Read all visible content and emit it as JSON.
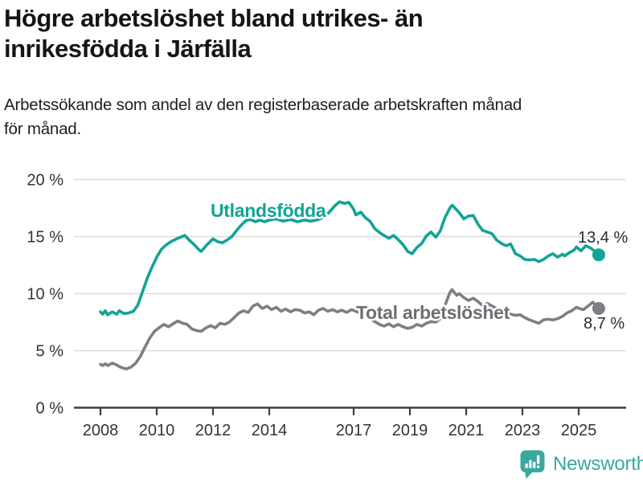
{
  "header": {
    "title_line1": "Högre arbetslöshet bland utrikes- än",
    "title_line2": "inrikesfödda i Järfälla",
    "subtitle_line1": "Arbetssökande som andel av den registerbaserade arbetskraften månad",
    "subtitle_line2": "för månad."
  },
  "chart_data": {
    "type": "line",
    "x_unit": "year (monthly data)",
    "y_unit": "%",
    "ylim": [
      0,
      20
    ],
    "xlim": [
      2006.94,
      2026.69
    ],
    "grid": "horizontal",
    "x_ticks": [
      2008,
      2010,
      2012,
      2014,
      2017,
      2019,
      2021,
      2023,
      2025
    ],
    "x_tick_labels": [
      "2008",
      "2010",
      "2012",
      "2014",
      "2017",
      "2019",
      "2021",
      "2023",
      "2025"
    ],
    "y_ticks": [
      0,
      5,
      10,
      15,
      20
    ],
    "y_tick_labels": [
      "0 %",
      "5 %",
      "10 %",
      "15 %",
      "20 %"
    ],
    "series": [
      {
        "name": "Utlandsfödda",
        "color": "#12a396",
        "end_value": 13.4,
        "end_label": "13,4 %",
        "points": [
          [
            2008.0,
            8.4
          ],
          [
            2008.08,
            8.2
          ],
          [
            2008.17,
            8.5
          ],
          [
            2008.25,
            8.15
          ],
          [
            2008.42,
            8.4
          ],
          [
            2008.58,
            8.2
          ],
          [
            2008.67,
            8.5
          ],
          [
            2008.83,
            8.25
          ],
          [
            2009.0,
            8.3
          ],
          [
            2009.17,
            8.45
          ],
          [
            2009.33,
            9.0
          ],
          [
            2009.5,
            10.2
          ],
          [
            2009.67,
            11.4
          ],
          [
            2009.83,
            12.3
          ],
          [
            2010.0,
            13.2
          ],
          [
            2010.17,
            13.9
          ],
          [
            2010.33,
            14.25
          ],
          [
            2010.5,
            14.55
          ],
          [
            2010.75,
            14.85
          ],
          [
            2011.0,
            15.1
          ],
          [
            2011.17,
            14.65
          ],
          [
            2011.33,
            14.3
          ],
          [
            2011.5,
            13.85
          ],
          [
            2011.58,
            13.7
          ],
          [
            2011.75,
            14.2
          ],
          [
            2012.0,
            14.8
          ],
          [
            2012.17,
            14.55
          ],
          [
            2012.33,
            14.45
          ],
          [
            2012.5,
            14.7
          ],
          [
            2012.67,
            15.0
          ],
          [
            2012.83,
            15.5
          ],
          [
            2013.0,
            16.0
          ],
          [
            2013.17,
            16.4
          ],
          [
            2013.33,
            16.5
          ],
          [
            2013.5,
            16.3
          ],
          [
            2013.67,
            16.45
          ],
          [
            2013.83,
            16.3
          ],
          [
            2014.0,
            16.45
          ],
          [
            2014.25,
            16.55
          ],
          [
            2014.5,
            16.35
          ],
          [
            2014.75,
            16.5
          ],
          [
            2015.0,
            16.3
          ],
          [
            2015.25,
            16.45
          ],
          [
            2015.5,
            16.35
          ],
          [
            2015.75,
            16.5
          ],
          [
            2016.0,
            16.8
          ],
          [
            2016.17,
            17.25
          ],
          [
            2016.33,
            17.7
          ],
          [
            2016.5,
            18.05
          ],
          [
            2016.67,
            17.9
          ],
          [
            2016.83,
            18.0
          ],
          [
            2017.0,
            17.4
          ],
          [
            2017.08,
            16.9
          ],
          [
            2017.25,
            17.15
          ],
          [
            2017.42,
            16.65
          ],
          [
            2017.58,
            16.35
          ],
          [
            2017.75,
            15.7
          ],
          [
            2017.92,
            15.35
          ],
          [
            2018.08,
            15.1
          ],
          [
            2018.25,
            14.85
          ],
          [
            2018.42,
            15.1
          ],
          [
            2018.58,
            14.75
          ],
          [
            2018.75,
            14.3
          ],
          [
            2018.92,
            13.7
          ],
          [
            2019.08,
            13.5
          ],
          [
            2019.25,
            14.05
          ],
          [
            2019.42,
            14.4
          ],
          [
            2019.58,
            15.05
          ],
          [
            2019.75,
            15.4
          ],
          [
            2019.92,
            14.95
          ],
          [
            2020.08,
            15.5
          ],
          [
            2020.25,
            16.7
          ],
          [
            2020.42,
            17.5
          ],
          [
            2020.5,
            17.75
          ],
          [
            2020.58,
            17.55
          ],
          [
            2020.75,
            17.1
          ],
          [
            2020.92,
            16.55
          ],
          [
            2021.08,
            16.8
          ],
          [
            2021.25,
            16.85
          ],
          [
            2021.42,
            16.1
          ],
          [
            2021.58,
            15.55
          ],
          [
            2021.75,
            15.4
          ],
          [
            2021.92,
            15.25
          ],
          [
            2022.08,
            14.7
          ],
          [
            2022.25,
            14.4
          ],
          [
            2022.42,
            14.2
          ],
          [
            2022.58,
            14.35
          ],
          [
            2022.75,
            13.5
          ],
          [
            2022.92,
            13.3
          ],
          [
            2023.08,
            13.0
          ],
          [
            2023.25,
            12.95
          ],
          [
            2023.42,
            13.0
          ],
          [
            2023.58,
            12.8
          ],
          [
            2023.75,
            13.0
          ],
          [
            2023.92,
            13.3
          ],
          [
            2024.08,
            13.5
          ],
          [
            2024.25,
            13.2
          ],
          [
            2024.42,
            13.45
          ],
          [
            2024.5,
            13.3
          ],
          [
            2024.67,
            13.6
          ],
          [
            2024.83,
            13.8
          ],
          [
            2024.92,
            14.1
          ],
          [
            2025.08,
            13.75
          ],
          [
            2025.25,
            14.2
          ],
          [
            2025.42,
            14.0
          ],
          [
            2025.58,
            13.7
          ],
          [
            2025.71,
            13.4
          ]
        ]
      },
      {
        "name": "Total arbetslöshet",
        "color": "#7e7e84",
        "end_value": 8.7,
        "end_label": "8,7 %",
        "points": [
          [
            2008.0,
            3.8
          ],
          [
            2008.08,
            3.7
          ],
          [
            2008.17,
            3.85
          ],
          [
            2008.25,
            3.7
          ],
          [
            2008.42,
            3.9
          ],
          [
            2008.58,
            3.75
          ],
          [
            2008.67,
            3.6
          ],
          [
            2008.83,
            3.45
          ],
          [
            2008.92,
            3.4
          ],
          [
            2009.08,
            3.55
          ],
          [
            2009.25,
            3.9
          ],
          [
            2009.42,
            4.5
          ],
          [
            2009.58,
            5.3
          ],
          [
            2009.75,
            6.1
          ],
          [
            2009.92,
            6.7
          ],
          [
            2010.08,
            7.0
          ],
          [
            2010.25,
            7.3
          ],
          [
            2010.42,
            7.1
          ],
          [
            2010.58,
            7.35
          ],
          [
            2010.75,
            7.6
          ],
          [
            2010.92,
            7.4
          ],
          [
            2011.08,
            7.3
          ],
          [
            2011.25,
            6.9
          ],
          [
            2011.42,
            6.75
          ],
          [
            2011.58,
            6.7
          ],
          [
            2011.75,
            7.0
          ],
          [
            2011.92,
            7.2
          ],
          [
            2012.08,
            7.0
          ],
          [
            2012.25,
            7.4
          ],
          [
            2012.42,
            7.3
          ],
          [
            2012.58,
            7.5
          ],
          [
            2012.75,
            7.9
          ],
          [
            2012.92,
            8.3
          ],
          [
            2013.08,
            8.5
          ],
          [
            2013.25,
            8.35
          ],
          [
            2013.42,
            8.9
          ],
          [
            2013.58,
            9.1
          ],
          [
            2013.75,
            8.7
          ],
          [
            2013.92,
            8.9
          ],
          [
            2014.08,
            8.6
          ],
          [
            2014.25,
            8.8
          ],
          [
            2014.42,
            8.45
          ],
          [
            2014.58,
            8.65
          ],
          [
            2014.75,
            8.4
          ],
          [
            2014.92,
            8.6
          ],
          [
            2015.08,
            8.55
          ],
          [
            2015.25,
            8.3
          ],
          [
            2015.42,
            8.4
          ],
          [
            2015.58,
            8.15
          ],
          [
            2015.75,
            8.55
          ],
          [
            2015.92,
            8.7
          ],
          [
            2016.08,
            8.45
          ],
          [
            2016.25,
            8.6
          ],
          [
            2016.42,
            8.4
          ],
          [
            2016.58,
            8.55
          ],
          [
            2016.75,
            8.35
          ],
          [
            2016.92,
            8.6
          ],
          [
            2017.08,
            8.45
          ],
          [
            2017.25,
            8.25
          ],
          [
            2017.42,
            8.05
          ],
          [
            2017.58,
            7.8
          ],
          [
            2017.75,
            7.55
          ],
          [
            2017.92,
            7.3
          ],
          [
            2018.08,
            7.15
          ],
          [
            2018.25,
            7.35
          ],
          [
            2018.42,
            7.1
          ],
          [
            2018.58,
            7.3
          ],
          [
            2018.75,
            7.1
          ],
          [
            2018.92,
            6.95
          ],
          [
            2019.08,
            7.05
          ],
          [
            2019.25,
            7.3
          ],
          [
            2019.42,
            7.15
          ],
          [
            2019.58,
            7.4
          ],
          [
            2019.75,
            7.55
          ],
          [
            2019.92,
            7.5
          ],
          [
            2020.08,
            7.8
          ],
          [
            2020.25,
            9.0
          ],
          [
            2020.42,
            10.1
          ],
          [
            2020.5,
            10.35
          ],
          [
            2020.58,
            10.1
          ],
          [
            2020.67,
            9.85
          ],
          [
            2020.75,
            10.0
          ],
          [
            2020.92,
            9.65
          ],
          [
            2021.08,
            9.4
          ],
          [
            2021.25,
            9.6
          ],
          [
            2021.42,
            9.3
          ],
          [
            2021.58,
            8.95
          ],
          [
            2021.75,
            9.15
          ],
          [
            2021.92,
            8.9
          ],
          [
            2022.08,
            8.7
          ],
          [
            2022.25,
            8.5
          ],
          [
            2022.42,
            8.3
          ],
          [
            2022.58,
            8.2
          ],
          [
            2022.75,
            8.1
          ],
          [
            2022.92,
            8.15
          ],
          [
            2023.08,
            7.9
          ],
          [
            2023.25,
            7.7
          ],
          [
            2023.42,
            7.55
          ],
          [
            2023.58,
            7.4
          ],
          [
            2023.75,
            7.7
          ],
          [
            2023.92,
            7.75
          ],
          [
            2024.08,
            7.7
          ],
          [
            2024.25,
            7.8
          ],
          [
            2024.42,
            8.0
          ],
          [
            2024.58,
            8.3
          ],
          [
            2024.75,
            8.5
          ],
          [
            2024.92,
            8.8
          ],
          [
            2025.08,
            8.65
          ],
          [
            2025.17,
            8.6
          ],
          [
            2025.33,
            8.9
          ],
          [
            2025.5,
            9.25
          ],
          [
            2025.71,
            8.7
          ]
        ]
      }
    ]
  },
  "branding": {
    "logo_text": "Newsworthy",
    "logo_color": "#3ba89f",
    "logo_icon": "bar-chart-speech-bubble"
  },
  "colors": {
    "teal": "#12a396",
    "gray_line": "#7e7e84",
    "gray_label": "#6e6e74",
    "axis": "#404040",
    "grid": "#dcdcdc"
  }
}
